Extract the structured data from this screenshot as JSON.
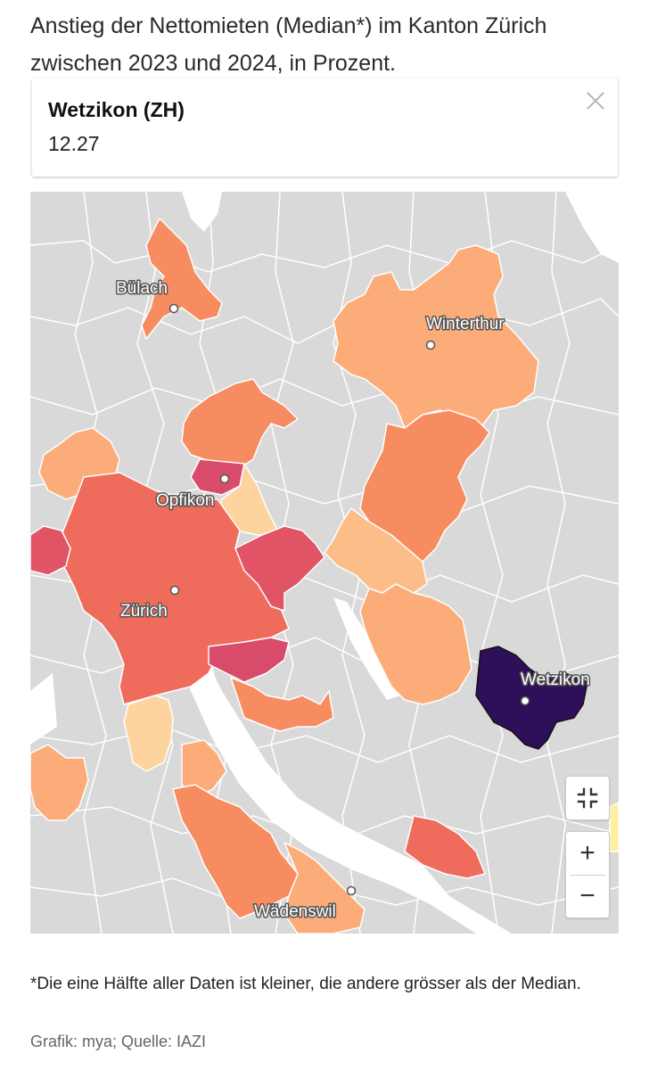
{
  "title": "Anstieg der Nettomieten (Median*) im Kanton Zürich zwischen 2023 und 2024, in Prozent.",
  "tooltip": {
    "name": "Wetzikon (ZH)",
    "value": "12.27"
  },
  "map": {
    "labels": {
      "buelach": "Bülach",
      "winterthur": "Winterthur",
      "opfikon": "Opfikon",
      "zuerich": "Zürich",
      "wetzikon": "Wetzikon",
      "waedenswil": "Wädenswil"
    },
    "colors": {
      "background": "#d9d9d9",
      "border": "#ffffff",
      "lake": "#ffffff",
      "light": "#fdd49e",
      "peach": "#fcac78",
      "orange": "#f68c60",
      "salmon": "#ef6c5c",
      "red": "#e05465",
      "crimson": "#d94b6b",
      "pale-yellow": "#ffef9e",
      "highlight": "#2e0f5a"
    }
  },
  "controls": {
    "zoom_in": "+",
    "zoom_out": "−"
  },
  "footnote": "*Die eine Hälfte aller Daten ist kleiner, die andere grösser als der Median.",
  "source": "Grafik: mya; Quelle: IAZI"
}
